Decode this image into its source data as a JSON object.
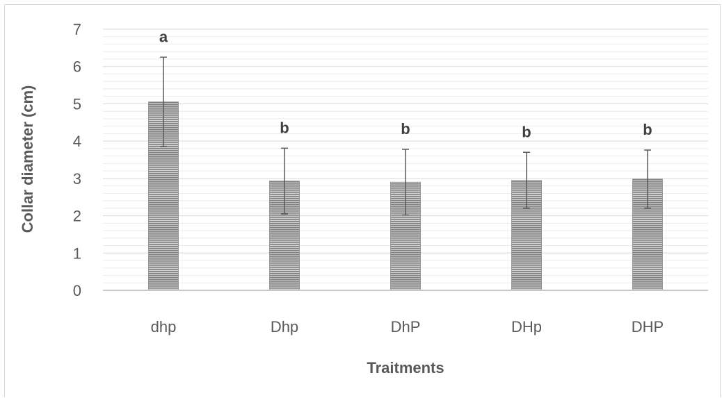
{
  "chart_data": {
    "type": "bar",
    "title": "",
    "xlabel": "Traitments",
    "ylabel": "Collar diameter (cm)",
    "ylim": [
      0,
      7
    ],
    "ytick_step": 1,
    "yticks": [
      "0",
      "1",
      "2",
      "3",
      "4",
      "5",
      "6",
      "7"
    ],
    "grid": true,
    "legend": "none",
    "categories": [
      "dhp",
      "Dhp",
      "DhP",
      "DHp",
      "DHP"
    ],
    "values": [
      5.05,
      2.93,
      2.9,
      2.95,
      2.98
    ],
    "error": [
      1.2,
      0.88,
      0.88,
      0.75,
      0.78
    ],
    "significance": [
      "a",
      "b",
      "b",
      "b",
      "b"
    ],
    "colors": {
      "bar": "#8c8c8c",
      "bar_stripe": "#cfcfcf",
      "grid": "#e6e6e6",
      "axis": "#c8c8c8",
      "errorbar": "#595959"
    }
  }
}
